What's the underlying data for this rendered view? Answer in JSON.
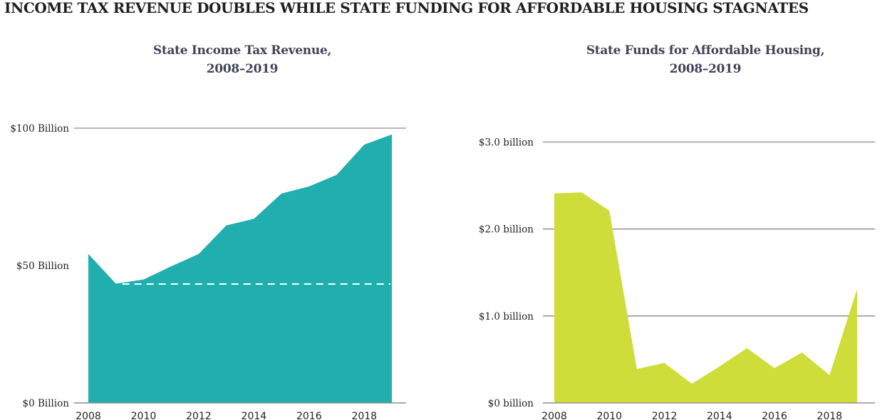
{
  "title": "INCOME TAX REVENUE DOUBLES WHILE STATE FUNDING FOR AFFORDABLE HOUSING STAGNATES",
  "chart_data": [
    {
      "type": "area",
      "title_line1": "State Income Tax Revenue,",
      "title_line2": "2008–2019",
      "xlabel": "",
      "ylabel": "",
      "color": "#20AEAF",
      "x": [
        2008,
        2009,
        2010,
        2011,
        2012,
        2013,
        2014,
        2015,
        2016,
        2017,
        2018,
        2019
      ],
      "values": [
        54.2,
        43.4,
        44.9,
        49.7,
        54.2,
        64.6,
        67.0,
        76.2,
        78.8,
        83.0,
        94.0,
        97.7
      ],
      "units": "billion USD",
      "ylim": [
        0,
        100
      ],
      "yticks": [
        {
          "value": 0,
          "label": "$0 Billion",
          "gridline": true
        },
        {
          "value": 50,
          "label": "$50 Billion",
          "gridline": false
        },
        {
          "value": 100,
          "label": "$100 Billion",
          "gridline": true
        }
      ],
      "xticks": [
        "2008",
        "2010",
        "2012",
        "2014",
        "2016",
        "2018"
      ],
      "reference_line": {
        "value": 43.4,
        "from_x": 2009,
        "to_x": 2019,
        "style": "dashed",
        "color": "#ffffff"
      },
      "grid": true,
      "legend": "none"
    },
    {
      "type": "area",
      "title_line1": "State Funds for Affordable Housing,",
      "title_line2": "2008–2019",
      "xlabel": "",
      "ylabel": "",
      "color": "#CEDD3A",
      "x": [
        2008,
        2009,
        2010,
        2011,
        2012,
        2013,
        2014,
        2015,
        2016,
        2017,
        2018,
        2019
      ],
      "values": [
        2.41,
        2.42,
        2.21,
        0.39,
        0.46,
        0.22,
        0.42,
        0.63,
        0.4,
        0.58,
        0.32,
        1.31
      ],
      "units": "billion USD",
      "ylim": [
        0,
        3
      ],
      "yticks": [
        {
          "value": 0,
          "label": "$0 billion",
          "gridline": true
        },
        {
          "value": 1,
          "label": "$1.0 billion",
          "gridline": true
        },
        {
          "value": 2,
          "label": "$2.0 billion",
          "gridline": true
        },
        {
          "value": 3,
          "label": "$3.0 billion",
          "gridline": true
        }
      ],
      "xticks": [
        "2008",
        "2010",
        "2012",
        "2014",
        "2016",
        "2018"
      ],
      "grid": true,
      "legend": "none"
    }
  ]
}
